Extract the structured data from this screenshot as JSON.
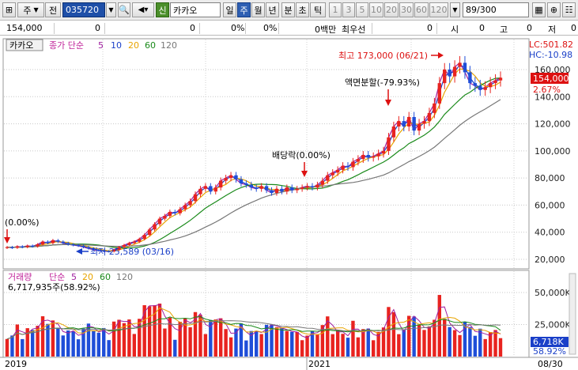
{
  "toolbar": {
    "market": "주",
    "prefix": "전",
    "code": "035720",
    "sin_label": "신",
    "stock_name": "카카오",
    "periods": [
      "일",
      "주",
      "월",
      "년",
      "분",
      "초",
      "틱"
    ],
    "minutes": [
      "1",
      "3",
      "5",
      "10",
      "20",
      "30",
      "60",
      "120"
    ],
    "page": "89",
    "page_total": "/300"
  },
  "quote": {
    "price": "154,000",
    "change": "0",
    "v1": "0",
    "p1": "0%",
    "p2": "0%",
    "amount": "0백만",
    "best_bid": "최우선",
    "v2": "0",
    "si": "시",
    "v3": "0",
    "go": "고",
    "v4": "0",
    "jeo": "저",
    "v5": "0"
  },
  "price_panel": {
    "stock": "카카오",
    "indicator": "종가 단순",
    "ma_periods": [
      "5",
      "10",
      "20",
      "60",
      "120"
    ],
    "ma_colors": [
      "#a020a0",
      "#1a3fc8",
      "#e8a400",
      "#1a8a1a",
      "#777777"
    ],
    "lc": "LC:501.82",
    "hc": "HC:-10.98",
    "current_price": "154,000",
    "current_pct": "2.67%",
    "ann_high": "최고 173,000 (06/21)",
    "ann_split": "액면분할(-79.93%)",
    "ann_div": "배당락(0.00%)",
    "ann_start": "(0.00%)",
    "ann_low": "최저 25,589 (03/16)"
  },
  "volume_panel": {
    "title": "거래량",
    "indicator": "단순",
    "ma_periods": [
      "5",
      "20",
      "60",
      "120"
    ],
    "ma_colors": [
      "#a020a0",
      "#e8a400",
      "#1a8a1a",
      "#777777"
    ],
    "latest": "6,717,935주(58.92%)",
    "current_vol": "6,718K",
    "current_pct": "58.92%"
  },
  "x_axis": {
    "left": "2019",
    "mid": "2021",
    "right": "08/30"
  },
  "chart_data": {
    "type": "candlestick",
    "price_ticks": [
      20000,
      40000,
      60000,
      80000,
      100000,
      120000,
      140000,
      160000
    ],
    "price_tick_labels": [
      "20,000",
      "40,000",
      "60,000",
      "80,000",
      "100,000",
      "120,000",
      "140,000",
      "160,000"
    ],
    "vol_ticks": [
      25000,
      50000
    ],
    "vol_tick_labels": [
      "25,000K",
      "50,000K"
    ],
    "closes": [
      29000,
      28500,
      29500,
      29000,
      30000,
      29500,
      31000,
      33000,
      32000,
      34000,
      33000,
      32000,
      31000,
      30500,
      30000,
      29000,
      28000,
      27000,
      26500,
      26000,
      25800,
      27000,
      29000,
      30500,
      32000,
      33000,
      35000,
      38000,
      42000,
      46000,
      50000,
      52000,
      55000,
      54000,
      57000,
      60000,
      63000,
      68000,
      72000,
      74000,
      70000,
      73000,
      78000,
      80000,
      82000,
      79000,
      76000,
      75000,
      73000,
      72000,
      74000,
      71000,
      69000,
      72000,
      70000,
      73000,
      71000,
      72000,
      73000,
      74000,
      73000,
      75000,
      78000,
      82000,
      84000,
      86000,
      89000,
      88000,
      92000,
      94000,
      97000,
      95000,
      96000,
      98000,
      100000,
      110000,
      118000,
      122000,
      118000,
      125000,
      115000,
      120000,
      122000,
      128000,
      135000,
      150000,
      160000,
      155000,
      162000,
      165000,
      158000,
      150000,
      148000,
      145000,
      147000,
      150000,
      152000,
      154000
    ]
  }
}
